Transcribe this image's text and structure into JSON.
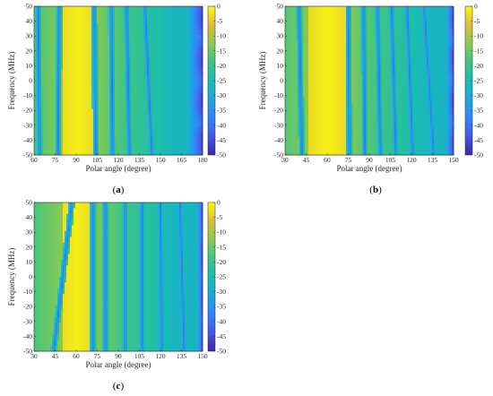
{
  "chart_data": [
    {
      "type": "heatmap",
      "panel": "(a)",
      "panel_letter": "a",
      "xlabel": "Polar angle (degree)",
      "ylabel": "Frequency (MHz)",
      "xlim": [
        60,
        180
      ],
      "ylim": [
        -50,
        50
      ],
      "xticks": [
        "60",
        "75",
        "90",
        "105",
        "120",
        "135",
        "150",
        "165",
        "180"
      ],
      "yticks": [
        "-50",
        "-40",
        "-30",
        "-20",
        "-10",
        "0",
        "10",
        "20",
        "30",
        "40",
        "50"
      ],
      "colorbar": {
        "range": [
          -50,
          0
        ],
        "ticks": [
          "0",
          "-5",
          "-10",
          "-15",
          "-20",
          "-25",
          "-30",
          "-35",
          "-40",
          "-45",
          "-50"
        ]
      },
      "colormap": "parula",
      "main_lobe_deg": [
        80,
        102
      ],
      "nulls_deg": [
        {
          "at_min_freq": 64,
          "at_max_freq": 63
        },
        {
          "at_min_freq": 77,
          "at_max_freq": 78
        },
        {
          "at_min_freq": 104,
          "at_max_freq": 103
        },
        {
          "at_min_freq": 116,
          "at_max_freq": 115
        },
        {
          "at_min_freq": 128,
          "at_max_freq": 126
        },
        {
          "at_min_freq": 144,
          "at_max_freq": 139
        }
      ],
      "deep_null_region_deg": [
        168,
        180
      ]
    },
    {
      "type": "heatmap",
      "panel": "(b)",
      "panel_letter": "b",
      "xlabel": "Polar angle (degree)",
      "ylabel": "Frequency (MHz)",
      "xlim": [
        30,
        150
      ],
      "ylim": [
        -50,
        50
      ],
      "xticks": [
        "30",
        "45",
        "60",
        "75",
        "90",
        "105",
        "120",
        "135",
        "150"
      ],
      "yticks": [
        "-50",
        "-40",
        "-30",
        "-20",
        "-10",
        "0",
        "10",
        "20",
        "30",
        "40",
        "50"
      ],
      "colorbar": {
        "range": [
          -50,
          0
        ],
        "ticks": [
          "0",
          "-5",
          "-10",
          "-15",
          "-20",
          "-25",
          "-30",
          "-35",
          "-40",
          "-45",
          "-50"
        ]
      },
      "colormap": "parula",
      "main_lobe_deg": [
        47,
        73
      ],
      "nulls_deg": [
        {
          "at_min_freq": 42,
          "at_max_freq": 40
        },
        {
          "at_min_freq": 76,
          "at_max_freq": 75
        },
        {
          "at_min_freq": 87,
          "at_max_freq": 86
        },
        {
          "at_min_freq": 98,
          "at_max_freq": 96
        },
        {
          "at_min_freq": 109,
          "at_max_freq": 106
        },
        {
          "at_min_freq": 121,
          "at_max_freq": 117
        },
        {
          "at_min_freq": 136,
          "at_max_freq": 129
        }
      ],
      "deep_null_region_deg": [
        144,
        150
      ]
    },
    {
      "type": "heatmap",
      "panel": "(c)",
      "panel_letter": "c",
      "xlabel": "Polar angle (degree)",
      "ylabel": "Frequency (MHz)",
      "xlim": [
        30,
        150
      ],
      "ylim": [
        -50,
        50
      ],
      "xticks": [
        "30",
        "45",
        "60",
        "75",
        "90",
        "105",
        "120",
        "135",
        "150"
      ],
      "yticks": [
        "-50",
        "-40",
        "-30",
        "-20",
        "-10",
        "0",
        "10",
        "20",
        "30",
        "40",
        "50"
      ],
      "colorbar": {
        "range": [
          -50,
          0
        ],
        "ticks": [
          "0",
          "-5",
          "-10",
          "-15",
          "-20",
          "-25",
          "-30",
          "-35",
          "-40",
          "-45",
          "-50"
        ]
      },
      "colormap": "parula",
      "main_lobe_deg": [
        50,
        70
      ],
      "nulls_deg": [
        {
          "at_min_freq": 44,
          "at_max_freq": 57
        },
        {
          "at_min_freq": 72,
          "at_max_freq": 72
        },
        {
          "at_min_freq": 81,
          "at_max_freq": 81
        },
        {
          "at_min_freq": 95,
          "at_max_freq": 95
        },
        {
          "at_min_freq": 107,
          "at_max_freq": 107
        },
        {
          "at_min_freq": 121,
          "at_max_freq": 120
        },
        {
          "at_min_freq": 137,
          "at_max_freq": 134
        }
      ],
      "deep_null_region_deg": [
        146,
        150
      ]
    }
  ]
}
